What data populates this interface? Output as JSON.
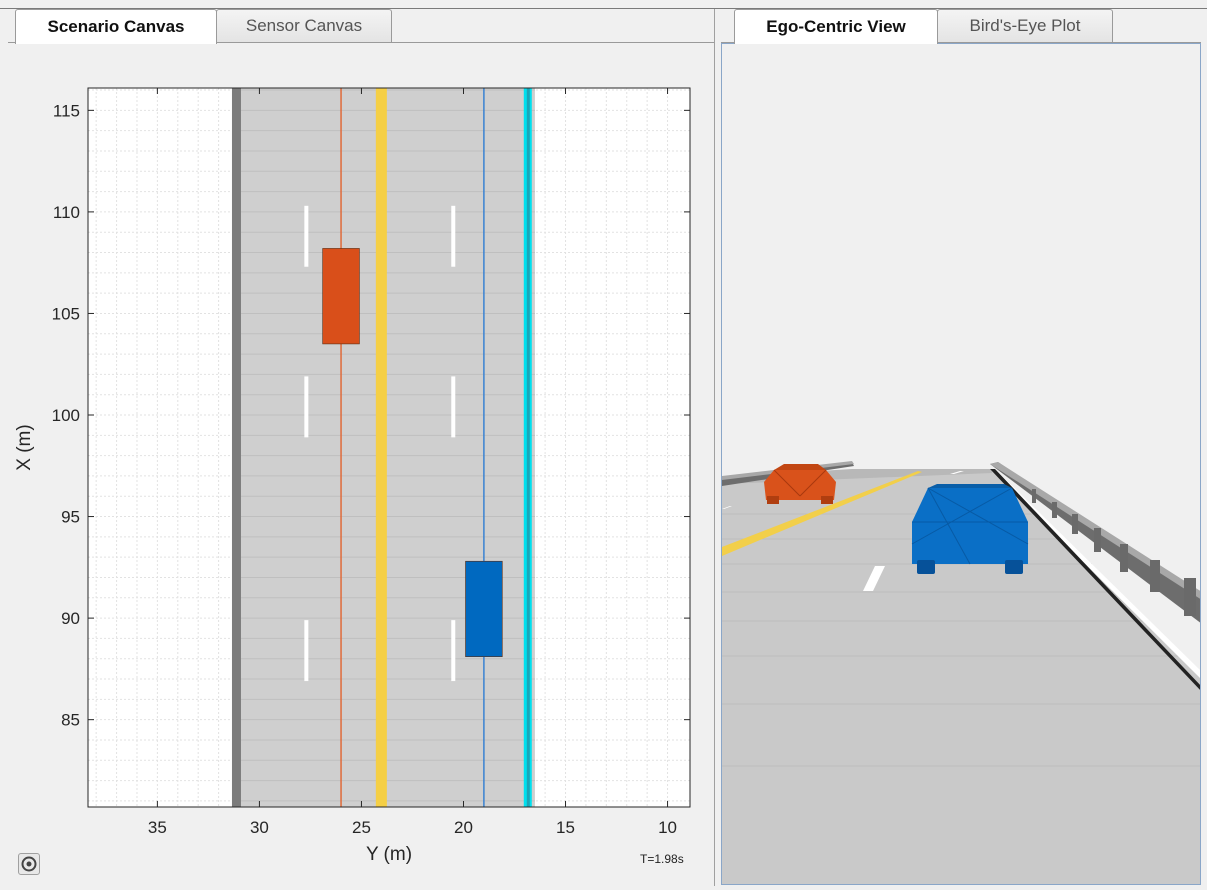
{
  "tabs_left": [
    {
      "label": "Scenario Canvas",
      "active": true
    },
    {
      "label": "Sensor Canvas",
      "active": false
    }
  ],
  "tabs_right": [
    {
      "label": "Ego-Centric View",
      "active": true
    },
    {
      "label": "Bird's-Eye Plot",
      "active": false
    }
  ],
  "canvas": {
    "xlabel": "Y (m)",
    "ylabel": "X (m)",
    "xticks": [
      35,
      30,
      25,
      20,
      15,
      10
    ],
    "yticks": [
      115,
      110,
      105,
      100,
      95,
      90,
      85
    ],
    "xrange": [
      38.4,
      8.9
    ],
    "yrange": [
      80.7,
      116.1
    ],
    "road": {
      "left_edge": 31.3,
      "right_edge": 16.5
    },
    "barriers": {
      "gray_y": 31.1,
      "cyan_y": 16.8
    },
    "yellow_line_y": 24.0,
    "lane_dashes_y": [
      27.7,
      20.5
    ],
    "dash_x_ranges": [
      [
        107.3,
        110.3
      ],
      [
        98.9,
        101.9
      ],
      [
        86.9,
        89.9
      ]
    ],
    "vehicles": [
      {
        "name": "orange-car",
        "color": "#d94f1a",
        "y_center": 26.0,
        "x_min": 103.5,
        "x_max": 108.2,
        "width": 1.8
      },
      {
        "name": "blue-car",
        "color": "#0069c0",
        "y_center": 19.0,
        "x_min": 88.1,
        "x_max": 92.8,
        "width": 1.8
      }
    ],
    "time_label": "T=1.98s",
    "colors": {
      "road": "#cfcfcf",
      "grid": "#e2e2e2",
      "yellow": "#f5cf45",
      "cyan": "#00e0ee",
      "orange_line": "#e06a3a",
      "blue_line": "#3a82d2"
    }
  },
  "icons": {
    "settings": "gear-icon"
  }
}
